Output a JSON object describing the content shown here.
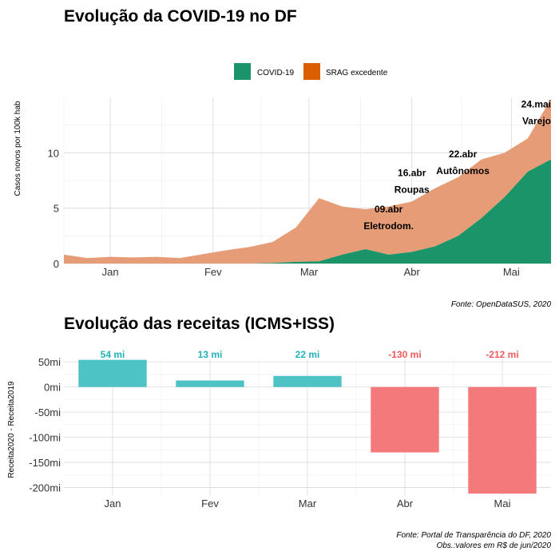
{
  "colors": {
    "covid": "#1b9469",
    "srag": "#e69d77",
    "srag_legend": "#d95f02",
    "bar_pos": "#4ec3c6",
    "bar_neg": "#f4797a",
    "label_pos": "#1fb3b8",
    "label_neg": "#f15a5c"
  },
  "chart_data": [
    {
      "type": "area",
      "title": "Evolução da COVID-19 no DF",
      "xlabel": "",
      "ylabel": "Casos novos por 100k hab",
      "ylim": [
        0,
        15
      ],
      "y_ticks": [
        0,
        5,
        10
      ],
      "x_ticks": [
        {
          "label": "Jan",
          "week": 3
        },
        {
          "label": "Fev",
          "week": 7.43
        },
        {
          "label": "Mar",
          "week": 11.57
        },
        {
          "label": "Abr",
          "week": 16
        },
        {
          "label": "Mai",
          "week": 20.29
        }
      ],
      "stacked": true,
      "legend": {
        "position": "top",
        "entries": [
          "COVID-19",
          "SRAG excedente"
        ]
      },
      "weeks": [
        1,
        2,
        3,
        4,
        5,
        6,
        7,
        8,
        9,
        10,
        11,
        12,
        13,
        14,
        15,
        16,
        17,
        18,
        19,
        20,
        21,
        22
      ],
      "series": [
        {
          "name": "COVID-19",
          "values": [
            0,
            0,
            0,
            0,
            0,
            0,
            0,
            0,
            0,
            0.05,
            0.15,
            0.2,
            0.8,
            1.3,
            0.8,
            1.05,
            1.55,
            2.5,
            4.1,
            6.0,
            8.3,
            9.4
          ]
        },
        {
          "name": "SRAG excedente",
          "values": [
            0.8,
            0.5,
            0.6,
            0.55,
            0.6,
            0.5,
            0.85,
            1.2,
            1.5,
            1.9,
            3.1,
            5.7,
            4.35,
            3.6,
            4.35,
            4.55,
            5.25,
            5.3,
            5.3,
            4.0,
            3.0,
            5.5
          ]
        }
      ],
      "annotations": [
        {
          "lines": [
            "09.abr",
            "Eletrodom."
          ],
          "week": 15.0,
          "y": 4.6
        },
        {
          "lines": [
            "16.abr",
            "Roupas"
          ],
          "week": 16.0,
          "y": 7.9
        },
        {
          "lines": [
            "22.abr",
            "Autônomos"
          ],
          "week": 18.2,
          "y": 9.6
        },
        {
          "lines": [
            "24.mai",
            "Varejo"
          ],
          "week": 22.0,
          "y": 14.1
        }
      ],
      "source": "Fonte: OpenDataSUS, 2020"
    },
    {
      "type": "bar",
      "title": "Evolução das receitas (ICMS+ISS)",
      "xlabel": "",
      "ylabel": "Receita2020 - Receita2019",
      "ylim": [
        -215,
        55
      ],
      "y_ticks": [
        {
          "value": 50,
          "label": "50mi"
        },
        {
          "value": 0,
          "label": "0mi"
        },
        {
          "value": -50,
          "label": "-50mi"
        },
        {
          "value": -100,
          "label": "-100mi"
        },
        {
          "value": -150,
          "label": "-150mi"
        },
        {
          "value": -200,
          "label": "-200mi"
        }
      ],
      "categories": [
        "Jan",
        "Fev",
        "Mar",
        "Abr",
        "Mai"
      ],
      "values": [
        54,
        13,
        22,
        -130,
        -212
      ],
      "value_labels": [
        "54 mi",
        "13 mi",
        "22 mi",
        "-130 mi",
        "-212 mi"
      ],
      "source_lines": [
        "Fonte: Portal de Transparência do DF, 2020",
        "Obs.:valores em R$ de jun/2020"
      ]
    }
  ]
}
